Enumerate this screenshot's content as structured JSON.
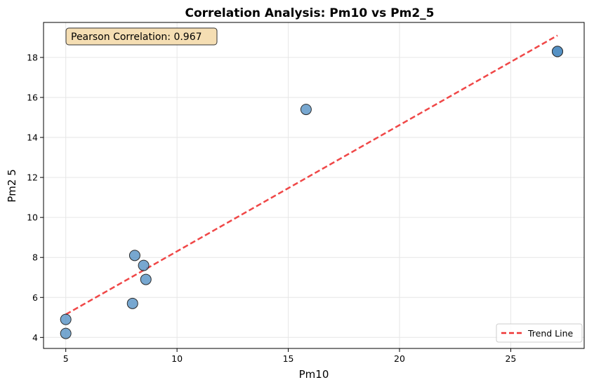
{
  "chart_data": {
    "type": "scatter",
    "title": "Correlation Analysis: Pm10 vs Pm2_5",
    "xlabel": "Pm10",
    "ylabel": "Pm2 5",
    "xlim": [
      4.0,
      28.3
    ],
    "ylim": [
      3.45,
      19.75
    ],
    "xticks": [
      5,
      10,
      15,
      20,
      25
    ],
    "yticks": [
      4,
      6,
      8,
      10,
      12,
      14,
      16,
      18
    ],
    "grid": true,
    "legend_position": "bottom-right",
    "points": [
      {
        "x": 5.0,
        "y": 4.9
      },
      {
        "x": 5.0,
        "y": 4.2
      },
      {
        "x": 8.0,
        "y": 5.7
      },
      {
        "x": 8.1,
        "y": 8.1
      },
      {
        "x": 8.5,
        "y": 7.6
      },
      {
        "x": 8.6,
        "y": 6.9
      },
      {
        "x": 15.8,
        "y": 15.4
      },
      {
        "x": 27.1,
        "y": 18.3
      },
      {
        "x": 27.1,
        "y": 18.3
      }
    ],
    "trend_line": {
      "name": "Trend Line",
      "x_start": 5.0,
      "y_start": 5.15,
      "x_end": 27.1,
      "y_end": 19.1
    },
    "annotation": "Pearson Correlation: 0.967",
    "colors": {
      "point_fill": "#4a89c0",
      "point_edge": "#2b2b2b",
      "trend": "#ee3333",
      "annotation_bg": "#f5deb3",
      "grid": "#e6e6e6"
    }
  }
}
